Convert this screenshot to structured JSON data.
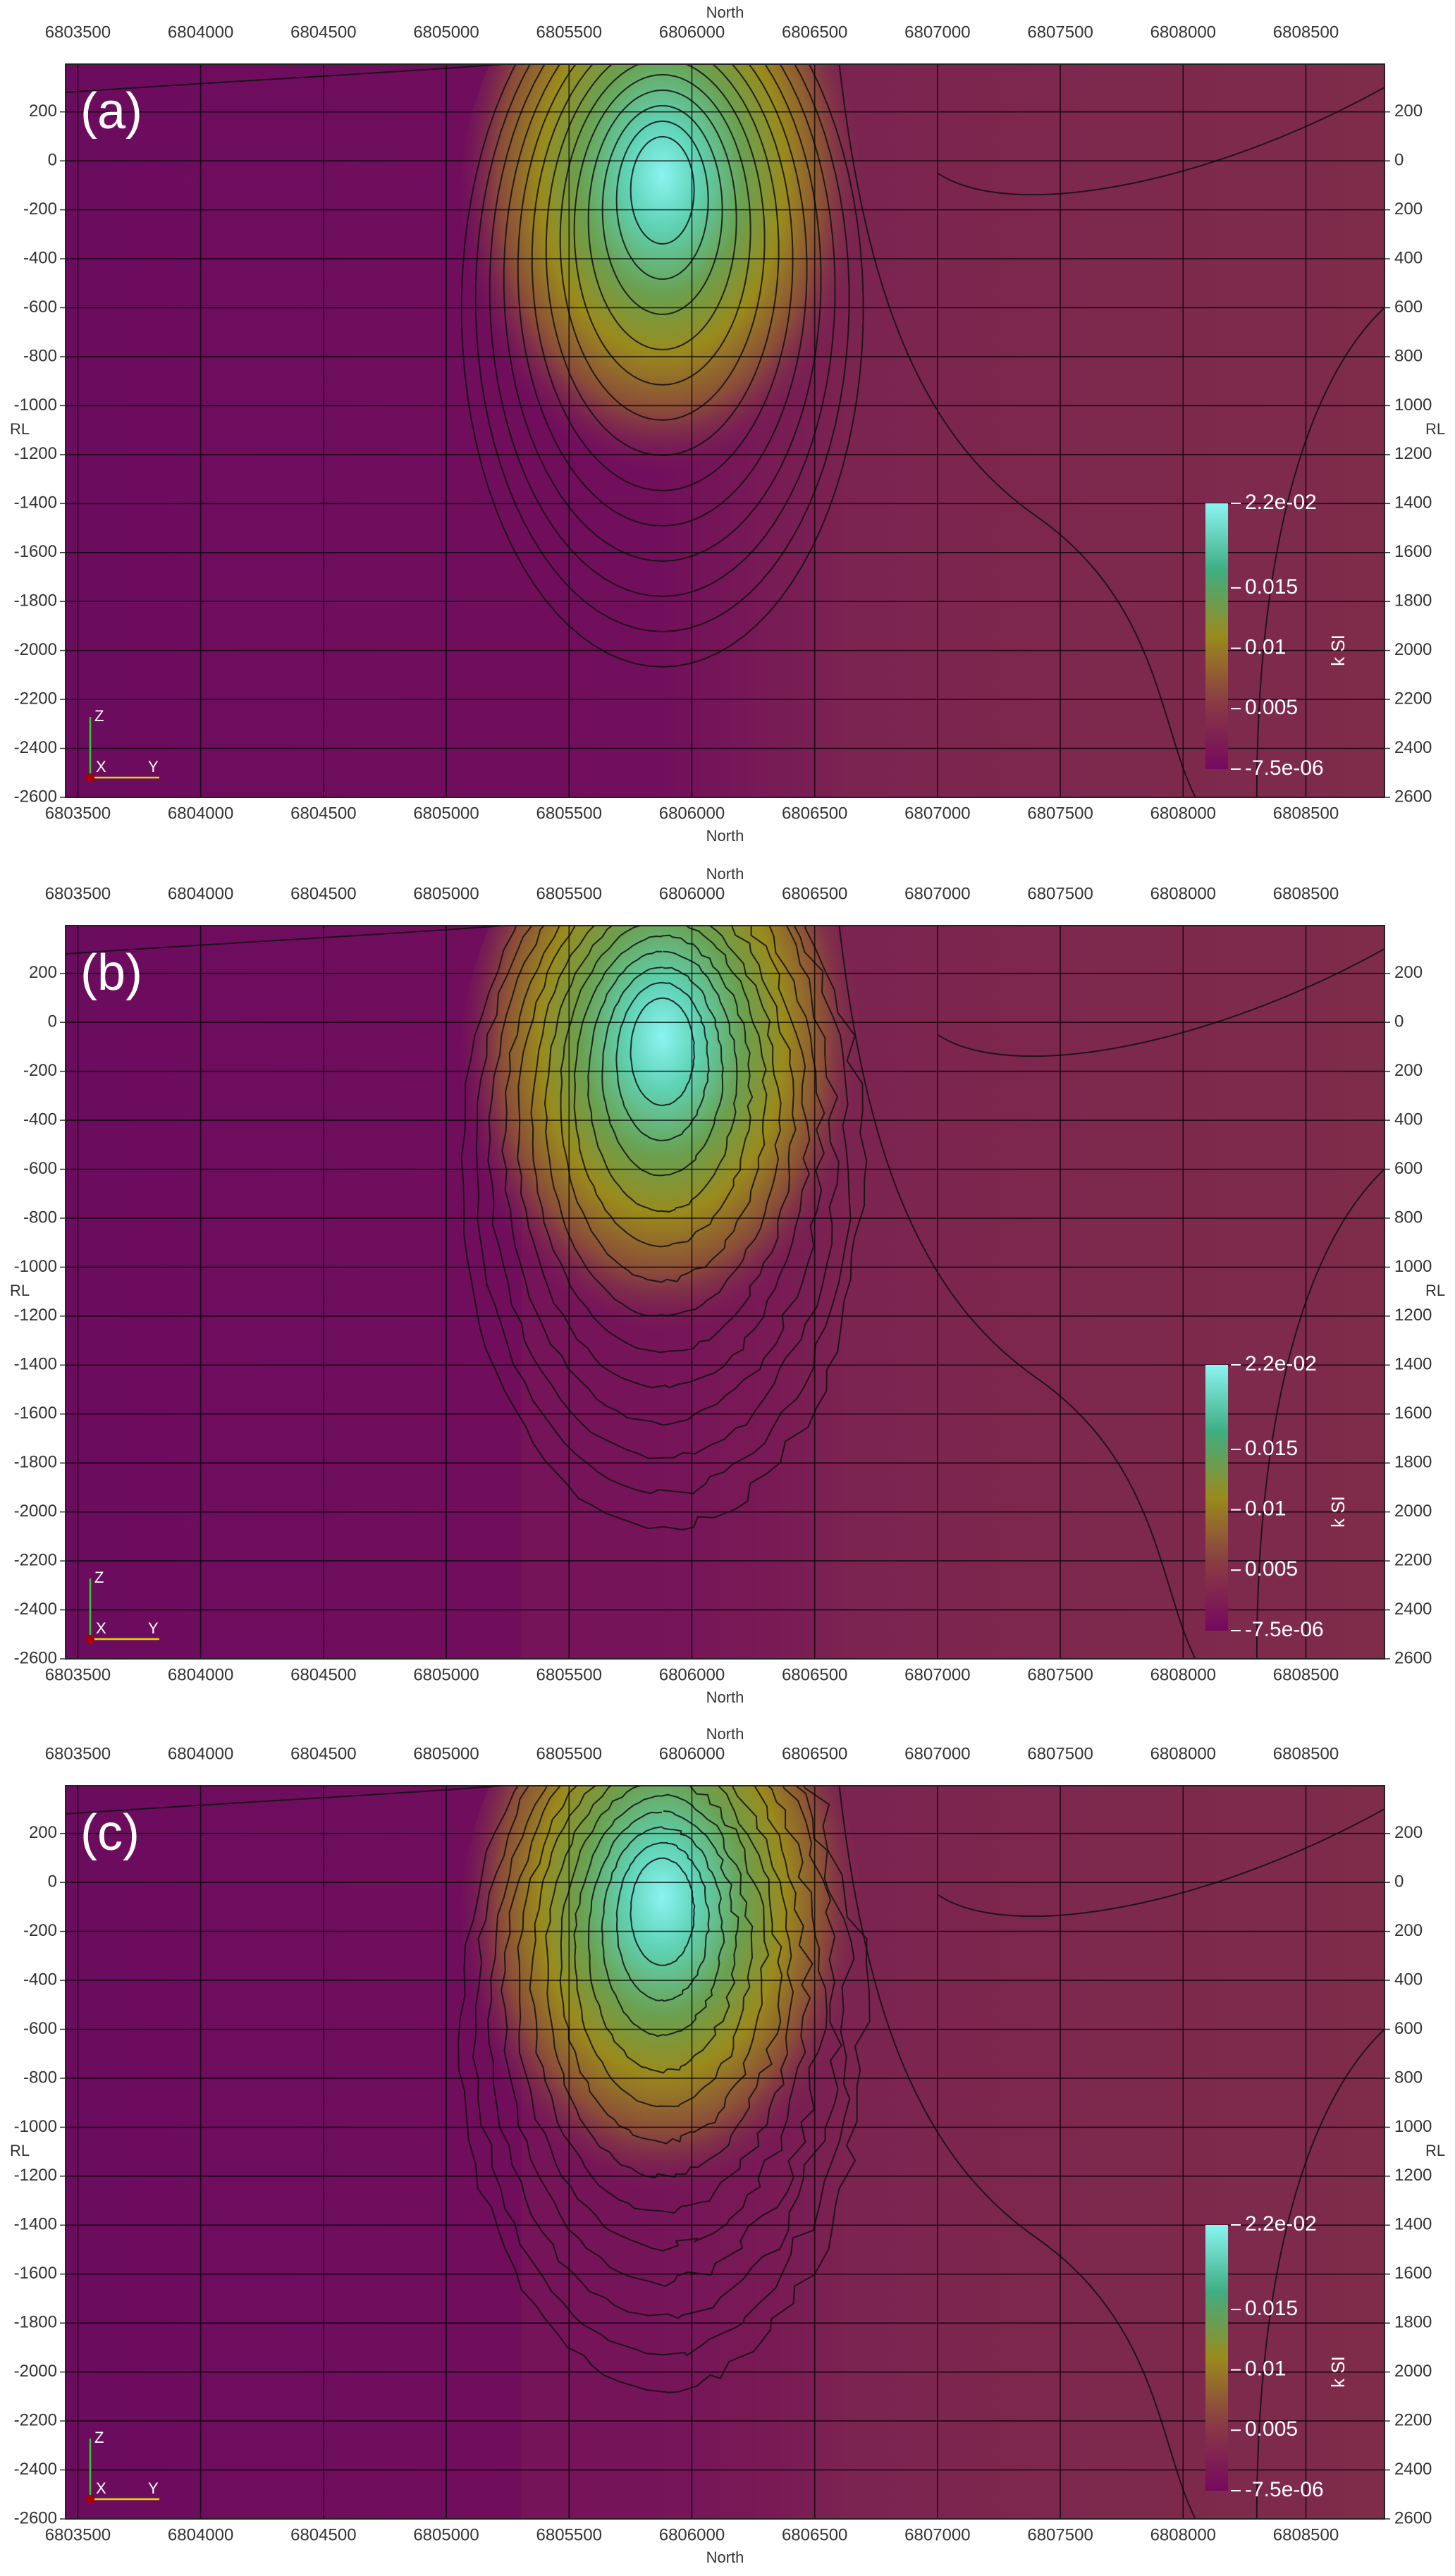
{
  "chart_data": [
    {
      "type": "section",
      "title": "(a)",
      "x_label": "North",
      "y_label": "RL",
      "xlim": [
        6803450,
        6808820
      ],
      "xticks": [
        6803500,
        6804000,
        6804500,
        6805000,
        6805500,
        6806000,
        6806500,
        6807000,
        6807500,
        6808000,
        6808500
      ],
      "ylim": [
        -2600,
        395
      ],
      "yticks": [
        200,
        0,
        -200,
        -400,
        -600,
        -800,
        -1000,
        -1200,
        -1400,
        -1600,
        -1800,
        -2000,
        -2200,
        -2400,
        -2600
      ],
      "y2lim": [
        -2600,
        395
      ],
      "y2ticks": [
        200,
        0,
        {
          "value": -200,
          "label": "200"
        },
        {
          "value": -400,
          "label": "400"
        },
        {
          "value": -600,
          "label": "600"
        },
        {
          "value": -800,
          "label": "800"
        },
        {
          "value": -1000,
          "label": "1000"
        },
        {
          "value": -1200,
          "label": "1200"
        },
        {
          "value": -1400,
          "label": "1400"
        },
        {
          "value": -1600,
          "label": "1600"
        },
        {
          "value": -1800,
          "label": "1800"
        },
        {
          "value": -2000,
          "label": "2000"
        },
        {
          "value": -2200,
          "label": "2200"
        },
        {
          "value": -2400,
          "label": "2400"
        },
        {
          "value": -2600,
          "label": "2600"
        }
      ],
      "grid": true,
      "colorbar": {
        "label": "k SI",
        "lim": [
          -7.5e-06,
          0.022
        ],
        "ticks": [
          {
            "value": 0.022,
            "label": "2.2e-02"
          },
          0.015,
          0.01,
          0.005,
          {
            "value": -7.5e-06,
            "label": "-7.5e-06"
          }
        ],
        "colors": [
          "#76085f",
          "#8a3a45",
          "#9a8a1c",
          "#3fae82",
          "#8af4f2"
        ]
      },
      "axes_triad": [
        "Z",
        "X",
        "Y"
      ]
    },
    {
      "type": "section",
      "title": "(b)",
      "x_label": "North",
      "y_label": "RL",
      "xlim": [
        6803450,
        6808820
      ],
      "xticks": [
        6803500,
        6804000,
        6804500,
        6805000,
        6805500,
        6806000,
        6806500,
        6807000,
        6807500,
        6808000,
        6808500
      ],
      "ylim": [
        -2600,
        395
      ],
      "yticks": [
        200,
        0,
        -200,
        -400,
        -600,
        -800,
        -1000,
        -1200,
        -1400,
        -1600,
        -1800,
        -2000,
        -2200,
        -2400,
        -2600
      ],
      "y2lim": [
        -2600,
        395
      ],
      "y2ticks": [
        200,
        0,
        {
          "value": -200,
          "label": "200"
        },
        {
          "value": -400,
          "label": "400"
        },
        {
          "value": -600,
          "label": "600"
        },
        {
          "value": -800,
          "label": "800"
        },
        {
          "value": -1000,
          "label": "1000"
        },
        {
          "value": -1200,
          "label": "1200"
        },
        {
          "value": -1400,
          "label": "1400"
        },
        {
          "value": -1600,
          "label": "1600"
        },
        {
          "value": -1800,
          "label": "1800"
        },
        {
          "value": -2000,
          "label": "2000"
        },
        {
          "value": -2200,
          "label": "2200"
        },
        {
          "value": -2400,
          "label": "2400"
        },
        {
          "value": -2600,
          "label": "2600"
        }
      ],
      "grid": true,
      "colorbar": {
        "label": "k SI",
        "lim": [
          -7.5e-06,
          0.022
        ],
        "ticks": [
          {
            "value": 0.022,
            "label": "2.2e-02"
          },
          0.015,
          0.01,
          0.005,
          {
            "value": -7.5e-06,
            "label": "-7.5e-06"
          }
        ],
        "colors": [
          "#76085f",
          "#8a3a45",
          "#9a8a1c",
          "#3fae82",
          "#8af4f2"
        ]
      },
      "axes_triad": [
        "Z",
        "X",
        "Y"
      ]
    },
    {
      "type": "section",
      "title": "(c)",
      "x_label": "North",
      "y_label": "RL",
      "xlim": [
        6803450,
        6808820
      ],
      "xticks": [
        6803500,
        6804000,
        6804500,
        6805000,
        6805500,
        6806000,
        6806500,
        6807000,
        6807500,
        6808000,
        6808500
      ],
      "ylim": [
        -2600,
        395
      ],
      "yticks": [
        200,
        0,
        -200,
        -400,
        -600,
        -800,
        -1000,
        -1200,
        -1400,
        -1600,
        -1800,
        -2000,
        -2200,
        -2400,
        -2600
      ],
      "y2lim": [
        -2600,
        395
      ],
      "y2ticks": [
        200,
        0,
        {
          "value": -200,
          "label": "200"
        },
        {
          "value": -400,
          "label": "400"
        },
        {
          "value": -600,
          "label": "600"
        },
        {
          "value": -800,
          "label": "800"
        },
        {
          "value": -1000,
          "label": "1000"
        },
        {
          "value": -1200,
          "label": "1200"
        },
        {
          "value": -1400,
          "label": "1400"
        },
        {
          "value": -1600,
          "label": "1600"
        },
        {
          "value": -1800,
          "label": "1800"
        },
        {
          "value": -2000,
          "label": "2000"
        },
        {
          "value": -2200,
          "label": "2200"
        },
        {
          "value": -2400,
          "label": "2400"
        },
        {
          "value": -2600,
          "label": "2600"
        }
      ],
      "grid": true,
      "colorbar": {
        "label": "k SI",
        "lim": [
          -7.5e-06,
          0.022
        ],
        "ticks": [
          {
            "value": 0.022,
            "label": "2.2e-02"
          },
          0.015,
          0.01,
          0.005,
          {
            "value": -7.5e-06,
            "label": "-7.5e-06"
          }
        ],
        "colors": [
          "#76085f",
          "#8a3a45",
          "#9a8a1c",
          "#3fae82",
          "#8af4f2"
        ]
      },
      "axes_triad": [
        "Z",
        "X",
        "Y"
      ]
    }
  ]
}
